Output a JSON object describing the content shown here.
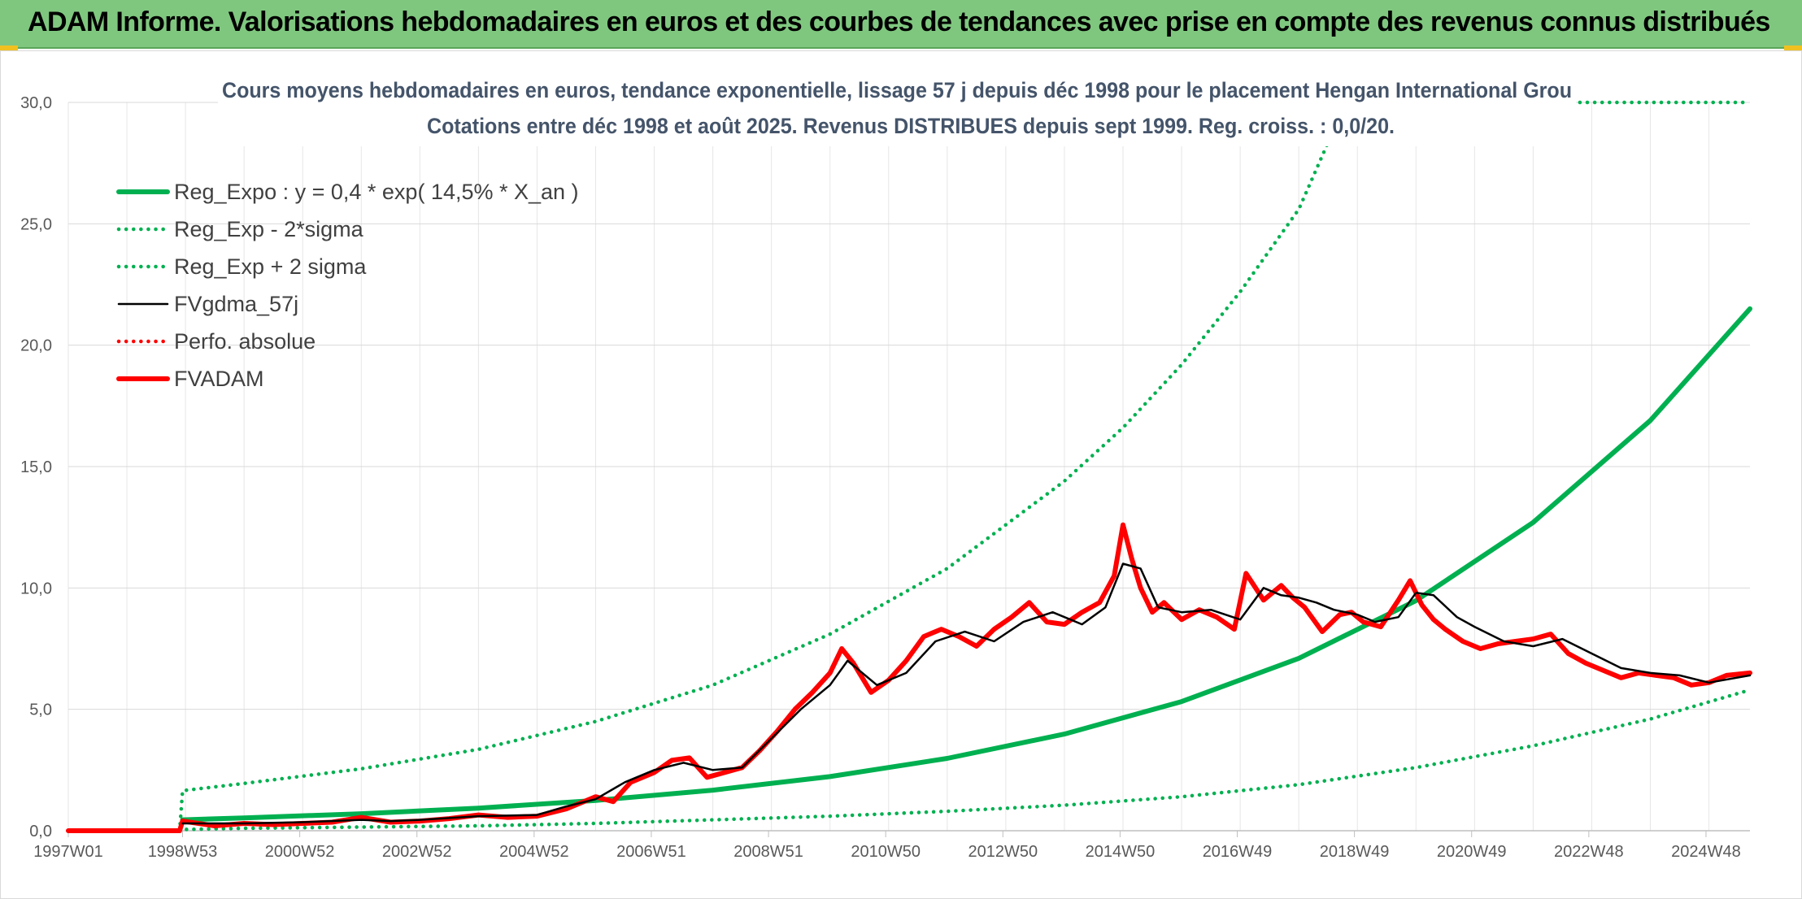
{
  "header": {
    "title": "ADAM Informe. Valorisations hebdomadaires en euros et des courbes de tendances avec prise en compte des revenus connus distribués"
  },
  "chart_data": {
    "type": "line",
    "title": "Cours moyens hebdomadaires en euros, tendance exponentielle, lissage 57 j depuis déc 1998 pour le placement Hengan International Grou",
    "subtitle": "Cotations entre déc 1998 et août 2025. Revenus DISTRIBUES depuis sept 1999. Reg. croiss. : 0,0/20.",
    "xlabel": "",
    "ylabel": "",
    "xlim": [
      1997.0,
      2025.7
    ],
    "ylim": [
      0,
      30
    ],
    "y_ticks": [
      "0,0",
      "5,0",
      "10,0",
      "15,0",
      "20,0",
      "25,0",
      "30,0"
    ],
    "x_ticks": [
      {
        "label": "1997W01",
        "x": 1997.0
      },
      {
        "label": "1998W53",
        "x": 1998.95
      },
      {
        "label": "2000W52",
        "x": 2000.95
      },
      {
        "label": "2002W52",
        "x": 2002.95
      },
      {
        "label": "2004W52",
        "x": 2004.95
      },
      {
        "label": "2006W51",
        "x": 2006.95
      },
      {
        "label": "2008W51",
        "x": 2008.95
      },
      {
        "label": "2010W50",
        "x": 2010.95
      },
      {
        "label": "2012W50",
        "x": 2012.95
      },
      {
        "label": "2014W50",
        "x": 2014.95
      },
      {
        "label": "2016W49",
        "x": 2016.95
      },
      {
        "label": "2018W49",
        "x": 2018.95
      },
      {
        "label": "2020W49",
        "x": 2020.95
      },
      {
        "label": "2022W48",
        "x": 2022.95
      },
      {
        "label": "2024W48",
        "x": 2024.95
      }
    ],
    "grid": true,
    "legend_position": "top-left",
    "colors": {
      "green": "#00b050",
      "red": "#ff0000",
      "black": "#000000"
    },
    "series": [
      {
        "name": "Reg_Expo : y = 0,4 * exp( 14,5% *  X_an )",
        "style": "solid-thick",
        "color": "#00b050",
        "x": [
          1998.95,
          2000,
          2002,
          2004,
          2006,
          2008,
          2010,
          2012,
          2014,
          2016,
          2018,
          2020,
          2022,
          2024,
          2025.7
        ],
        "values": [
          0.45,
          0.53,
          0.7,
          0.93,
          1.25,
          1.67,
          2.23,
          2.98,
          3.98,
          5.32,
          7.1,
          9.48,
          12.7,
          16.9,
          21.5
        ]
      },
      {
        "name": "Reg_Exp - 2*sigma",
        "style": "dotted",
        "color": "#00b050",
        "x": [
          1997.0,
          1998.9,
          1998.95,
          2000,
          2002,
          2004,
          2006,
          2008,
          2010,
          2012,
          2014,
          2016,
          2018,
          2020,
          2022,
          2024,
          2025.7
        ],
        "values": [
          0,
          0,
          0.05,
          0.1,
          0.15,
          0.2,
          0.3,
          0.45,
          0.6,
          0.8,
          1.05,
          1.4,
          1.9,
          2.6,
          3.5,
          4.6,
          5.8
        ]
      },
      {
        "name": "Reg_Exp + 2 sigma",
        "style": "dotted",
        "color": "#00b050",
        "x": [
          1997.0,
          1998.9,
          1998.95,
          2000,
          2002,
          2004,
          2006,
          2008,
          2010,
          2012,
          2014,
          2015,
          2016,
          2017,
          2018,
          2018.8,
          2025.7
        ],
        "values": [
          0,
          0,
          1.65,
          1.95,
          2.55,
          3.35,
          4.5,
          6.0,
          8.1,
          10.8,
          14.4,
          16.6,
          19.2,
          22.2,
          25.6,
          30.0,
          30.0
        ]
      },
      {
        "name": "FVgdma_57j",
        "style": "solid",
        "color": "#000000",
        "x": [
          1998.95,
          2000,
          2001,
          2002,
          2002.5,
          2003,
          2004,
          2005,
          2005.5,
          2006,
          2006.5,
          2007,
          2007.5,
          2008,
          2008.5,
          2009,
          2009.5,
          2010,
          2010.3,
          2010.8,
          2011.3,
          2011.8,
          2012.3,
          2012.8,
          2013.3,
          2013.8,
          2014.3,
          2014.7,
          2015.0,
          2015.3,
          2015.6,
          2016.0,
          2016.5,
          2017.0,
          2017.4,
          2017.7,
          2018.0,
          2018.3,
          2018.6,
          2019.0,
          2019.3,
          2019.7,
          2020.0,
          2020.3,
          2020.7,
          2021.0,
          2021.5,
          2022.0,
          2022.5,
          2023.0,
          2023.5,
          2024.0,
          2024.5,
          2025.0,
          2025.7
        ],
        "values": [
          0.3,
          0.3,
          0.35,
          0.45,
          0.4,
          0.45,
          0.6,
          0.65,
          1.0,
          1.3,
          2.0,
          2.5,
          2.8,
          2.5,
          2.6,
          3.8,
          5.0,
          6.0,
          7.0,
          6.0,
          6.5,
          7.8,
          8.2,
          7.8,
          8.6,
          9.0,
          8.5,
          9.2,
          11.0,
          10.8,
          9.2,
          9.0,
          9.1,
          8.7,
          10.0,
          9.7,
          9.6,
          9.4,
          9.1,
          8.9,
          8.6,
          8.8,
          9.8,
          9.7,
          8.8,
          8.4,
          7.8,
          7.6,
          7.9,
          7.3,
          6.7,
          6.5,
          6.4,
          6.1,
          6.4
        ]
      },
      {
        "name": "Perfo. absolue",
        "style": "dotted",
        "color": "#ff0000",
        "x": [
          1997.0,
          1998.9
        ],
        "values": [
          0,
          0
        ]
      },
      {
        "name": "FVADAM",
        "style": "solid-thick",
        "color": "#ff0000",
        "x": [
          1997.0,
          1998.9,
          1998.95,
          1999.5,
          2000,
          2000.5,
          2001,
          2001.5,
          2002,
          2002.5,
          2003,
          2003.5,
          2004,
          2004.5,
          2005,
          2005.5,
          2006,
          2006.3,
          2006.6,
          2007,
          2007.3,
          2007.6,
          2007.9,
          2008.2,
          2008.5,
          2008.8,
          2009.1,
          2009.4,
          2009.7,
          2010.0,
          2010.2,
          2010.4,
          2010.7,
          2011.0,
          2011.3,
          2011.6,
          2011.9,
          2012.2,
          2012.5,
          2012.8,
          2013.1,
          2013.4,
          2013.7,
          2014.0,
          2014.3,
          2014.6,
          2014.85,
          2015.0,
          2015.15,
          2015.3,
          2015.5,
          2015.7,
          2016.0,
          2016.3,
          2016.6,
          2016.9,
          2017.1,
          2017.4,
          2017.7,
          2017.9,
          2018.1,
          2018.4,
          2018.7,
          2018.9,
          2019.1,
          2019.4,
          2019.7,
          2019.9,
          2020.1,
          2020.3,
          2020.5,
          2020.8,
          2021.1,
          2021.4,
          2021.7,
          2022.0,
          2022.3,
          2022.6,
          2022.9,
          2023.2,
          2023.5,
          2023.8,
          2024.1,
          2024.4,
          2024.7,
          2025.0,
          2025.3,
          2025.7
        ],
        "values": [
          0,
          0,
          0.4,
          0.2,
          0.3,
          0.25,
          0.3,
          0.35,
          0.55,
          0.35,
          0.4,
          0.5,
          0.65,
          0.55,
          0.6,
          0.9,
          1.4,
          1.2,
          2.0,
          2.4,
          2.9,
          3.0,
          2.2,
          2.4,
          2.6,
          3.3,
          4.1,
          5.0,
          5.7,
          6.5,
          7.5,
          6.9,
          5.7,
          6.2,
          7.0,
          8.0,
          8.3,
          8.0,
          7.6,
          8.3,
          8.8,
          9.4,
          8.6,
          8.5,
          9.0,
          9.4,
          10.5,
          12.6,
          11.2,
          10.0,
          9.0,
          9.4,
          8.7,
          9.1,
          8.8,
          8.3,
          10.6,
          9.5,
          10.1,
          9.6,
          9.2,
          8.2,
          8.9,
          9.0,
          8.6,
          8.4,
          9.5,
          10.3,
          9.3,
          8.7,
          8.3,
          7.8,
          7.5,
          7.7,
          7.8,
          7.9,
          8.1,
          7.3,
          6.9,
          6.6,
          6.3,
          6.5,
          6.4,
          6.3,
          6.0,
          6.1,
          6.4,
          6.5
        ]
      }
    ]
  }
}
